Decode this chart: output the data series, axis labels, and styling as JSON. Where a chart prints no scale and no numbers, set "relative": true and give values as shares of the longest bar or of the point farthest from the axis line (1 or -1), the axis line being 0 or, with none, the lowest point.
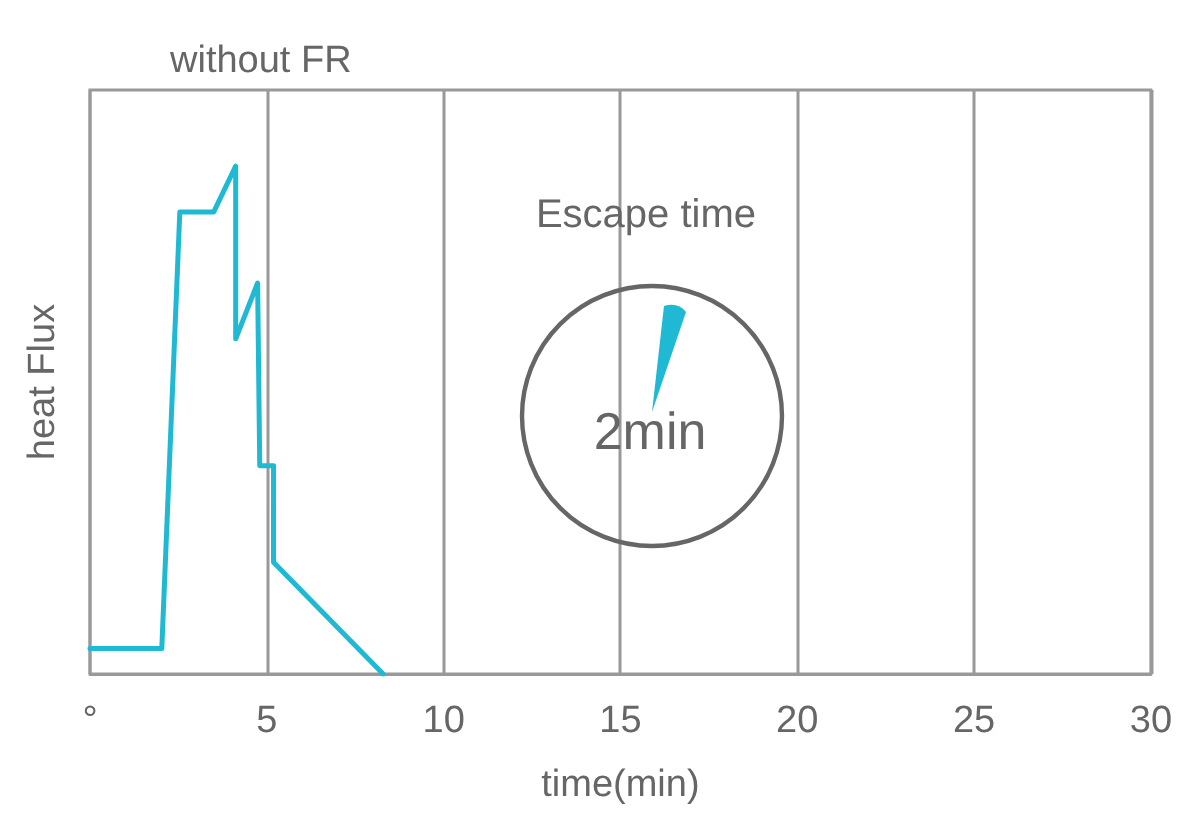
{
  "chart_data": {
    "type": "line",
    "title": "without FR",
    "xlabel": "time(min)",
    "ylabel": "heat Flux",
    "relative": true,
    "x": [
      0,
      2.03,
      2.54,
      3.5,
      4.12,
      4.12,
      4.74,
      4.8,
      5.19,
      5.19,
      8.29
    ],
    "series": [
      {
        "color": "#1fb9d4",
        "values": [
          0.05,
          0.05,
          0.91,
          0.91,
          1,
          0.66,
          0.77,
          0.41,
          0.41,
          0.22,
          0
        ]
      }
    ],
    "xlim": [
      0,
      30
    ],
    "xticks": [
      {
        "value": 0,
        "label": "°"
      },
      5,
      10,
      15,
      20,
      25,
      30
    ],
    "grid": "x",
    "marker": "none",
    "line_style": "solid",
    "annotations": [
      "Escape time",
      "2min"
    ]
  }
}
